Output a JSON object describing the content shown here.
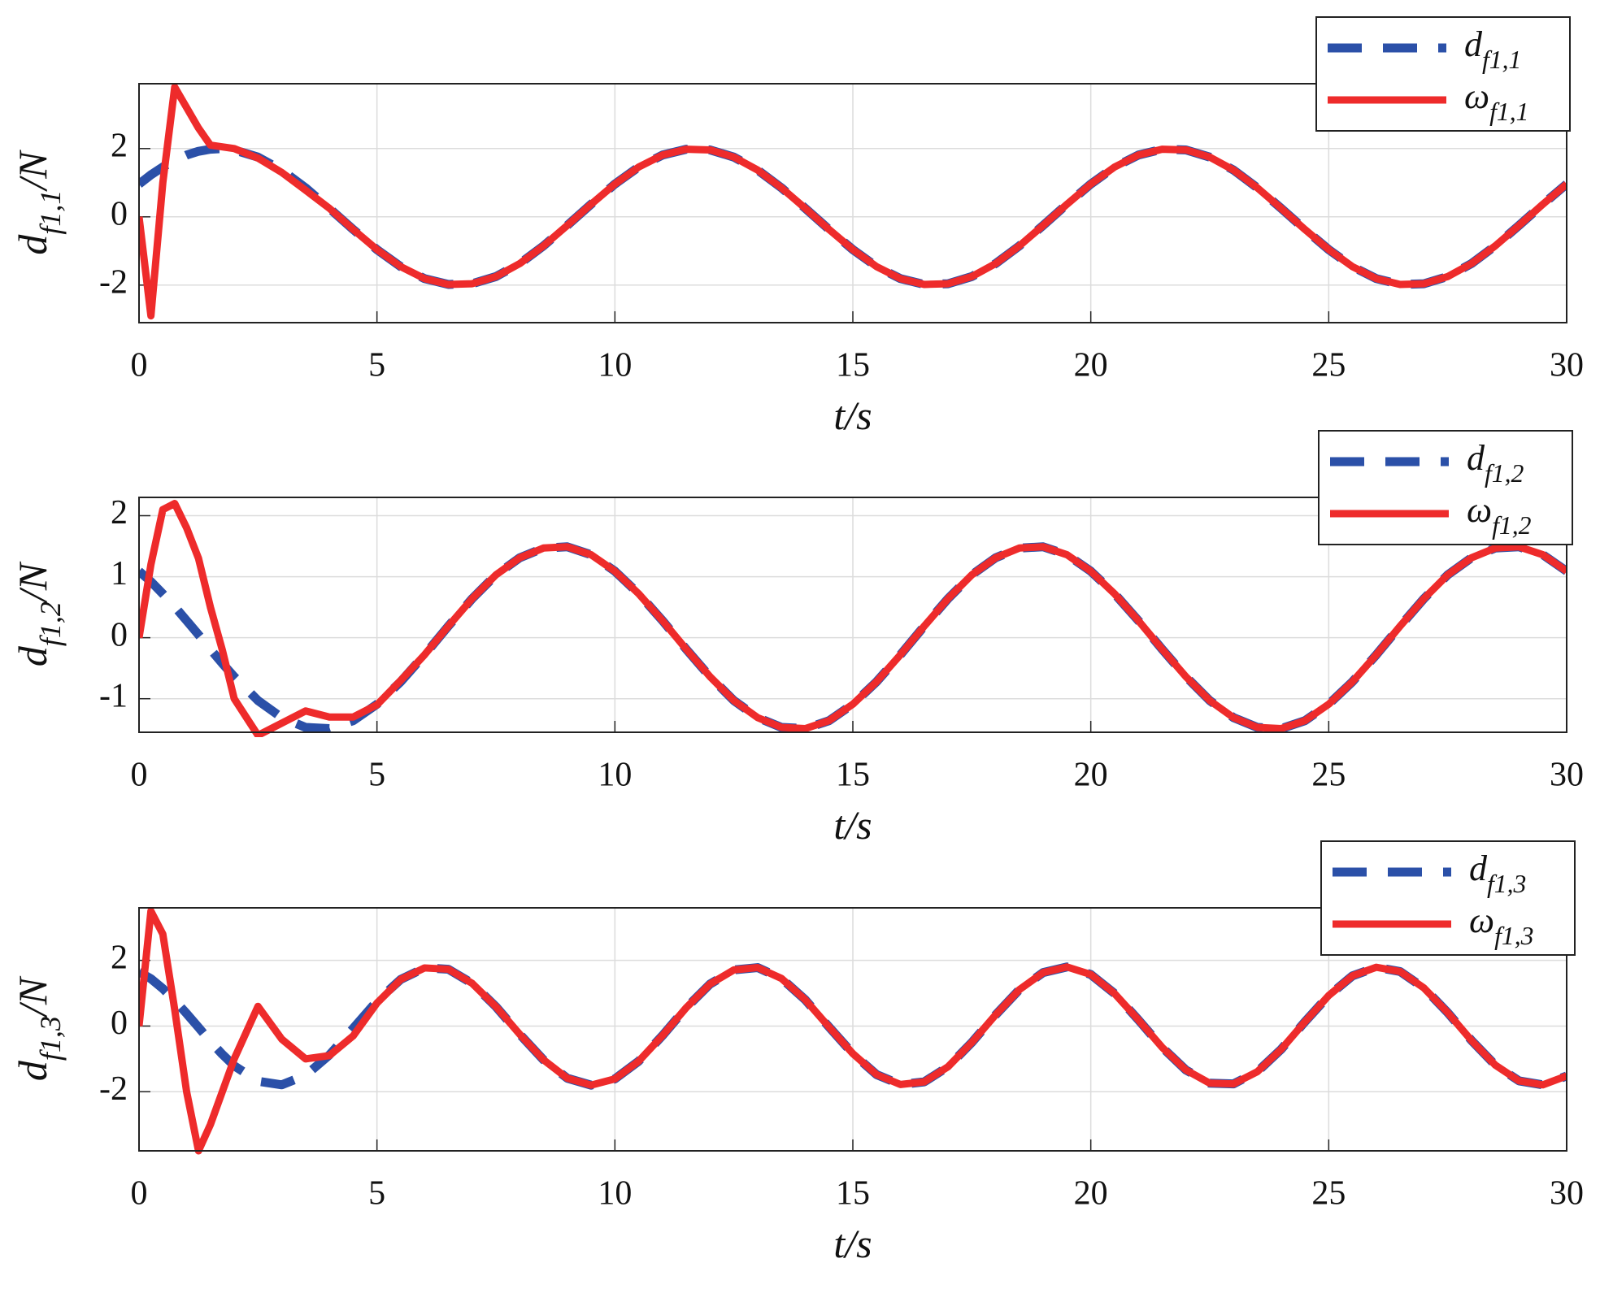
{
  "chart_data": [
    {
      "type": "line",
      "xlabel": "t/s",
      "ylabel": "df1,1/N",
      "x": [
        0,
        0.25,
        0.5,
        0.75,
        1,
        1.25,
        1.5,
        1.75,
        2,
        2.5,
        3,
        3.5,
        4,
        4.5,
        5,
        5.5,
        6,
        6.5,
        7,
        7.5,
        8,
        8.5,
        9,
        9.5,
        10,
        10.5,
        11,
        11.5,
        12,
        12.5,
        13,
        13.5,
        14,
        14.5,
        15,
        15.5,
        16,
        16.5,
        17,
        17.5,
        18,
        18.5,
        19,
        19.5,
        20,
        20.5,
        21,
        21.5,
        22,
        22.5,
        23,
        23.5,
        24,
        24.5,
        25,
        25.5,
        26,
        26.5,
        27,
        27.5,
        28,
        28.5,
        29,
        29.5,
        30
      ],
      "series": [
        {
          "name": "df1,1",
          "color": "#2b50a8",
          "linestyle": "dashed",
          "values": [
            0.96,
            1.23,
            1.46,
            1.65,
            1.81,
            1.92,
            1.98,
            2.0,
            1.96,
            1.75,
            1.37,
            0.85,
            0.25,
            -0.37,
            -0.96,
            -1.46,
            -1.81,
            -1.98,
            -1.96,
            -1.75,
            -1.37,
            -0.85,
            -0.25,
            0.37,
            0.96,
            1.46,
            1.81,
            1.98,
            1.96,
            1.75,
            1.37,
            0.85,
            0.25,
            -0.37,
            -0.96,
            -1.46,
            -1.81,
            -1.98,
            -1.96,
            -1.75,
            -1.37,
            -0.85,
            -0.25,
            0.37,
            0.96,
            1.46,
            1.81,
            1.98,
            1.96,
            1.75,
            1.37,
            0.85,
            0.25,
            -0.37,
            -0.96,
            -1.46,
            -1.81,
            -1.98,
            -1.96,
            -1.75,
            -1.37,
            -0.85,
            -0.25,
            0.37,
            0.96
          ]
        },
        {
          "name": "ωf1,1",
          "color": "#ee2b2b",
          "linestyle": "solid",
          "values": [
            0,
            -2.9,
            1.0,
            3.8,
            3.2,
            2.6,
            2.1,
            2.05,
            2.0,
            1.72,
            1.3,
            0.78,
            0.25,
            -0.37,
            -0.96,
            -1.46,
            -1.81,
            -1.98,
            -1.96,
            -1.75,
            -1.37,
            -0.85,
            -0.25,
            0.37,
            0.96,
            1.46,
            1.81,
            1.98,
            1.96,
            1.75,
            1.37,
            0.85,
            0.25,
            -0.37,
            -0.96,
            -1.46,
            -1.81,
            -1.98,
            -1.96,
            -1.75,
            -1.37,
            -0.85,
            -0.25,
            0.37,
            0.96,
            1.46,
            1.81,
            1.98,
            1.96,
            1.75,
            1.37,
            0.85,
            0.25,
            -0.37,
            -0.96,
            -1.46,
            -1.81,
            -1.98,
            -1.96,
            -1.75,
            -1.37,
            -0.85,
            -0.25,
            0.37,
            0.96
          ]
        }
      ],
      "xlim": [
        0,
        30
      ],
      "xticks": [
        0,
        5,
        10,
        15,
        20,
        25,
        30
      ],
      "ylim": [
        -3.1,
        3.9
      ],
      "yticks": [
        -2,
        0,
        2
      ],
      "grid": true,
      "legend_position": "upper right"
    },
    {
      "type": "line",
      "xlabel": "t/s",
      "ylabel": "df1,2/N",
      "x": [
        0,
        0.25,
        0.5,
        0.75,
        1,
        1.25,
        1.5,
        1.75,
        2,
        2.5,
        3,
        3.5,
        4,
        4.5,
        5,
        5.5,
        6,
        6.5,
        7,
        7.5,
        8,
        8.5,
        9,
        9.5,
        10,
        10.5,
        11,
        11.5,
        12,
        12.5,
        13,
        13.5,
        14,
        14.5,
        15,
        15.5,
        16,
        16.5,
        17,
        17.5,
        18,
        18.5,
        19,
        19.5,
        20,
        20.5,
        21,
        21.5,
        22,
        22.5,
        23,
        23.5,
        24,
        24.5,
        25,
        25.5,
        26,
        26.5,
        27,
        27.5,
        28,
        28.5,
        29,
        29.5,
        30
      ],
      "series": [
        {
          "name": "df1,2",
          "color": "#2b50a8",
          "linestyle": "dashed",
          "values": [
            1.09,
            0.92,
            0.72,
            0.51,
            0.28,
            0.05,
            -0.19,
            -0.42,
            -0.64,
            -1.03,
            -1.31,
            -1.47,
            -1.49,
            -1.36,
            -1.09,
            -0.72,
            -0.28,
            0.19,
            0.64,
            1.03,
            1.31,
            1.47,
            1.49,
            1.36,
            1.09,
            0.72,
            0.28,
            -0.19,
            -0.64,
            -1.03,
            -1.31,
            -1.47,
            -1.49,
            -1.36,
            -1.09,
            -0.72,
            -0.28,
            0.19,
            0.64,
            1.03,
            1.31,
            1.47,
            1.49,
            1.36,
            1.09,
            0.72,
            0.28,
            -0.19,
            -0.64,
            -1.03,
            -1.31,
            -1.47,
            -1.49,
            -1.36,
            -1.09,
            -0.72,
            -0.28,
            0.19,
            0.64,
            1.03,
            1.31,
            1.47,
            1.49,
            1.36,
            1.09
          ]
        },
        {
          "name": "ωf1,2",
          "color": "#ee2b2b",
          "linestyle": "solid",
          "values": [
            0,
            1.2,
            2.1,
            2.2,
            1.8,
            1.3,
            0.5,
            -0.2,
            -1.0,
            -1.6,
            -1.4,
            -1.2,
            -1.3,
            -1.3,
            -1.1,
            -0.7,
            -0.28,
            0.19,
            0.64,
            1.03,
            1.31,
            1.47,
            1.49,
            1.36,
            1.09,
            0.72,
            0.28,
            -0.19,
            -0.64,
            -1.03,
            -1.31,
            -1.47,
            -1.49,
            -1.36,
            -1.09,
            -0.72,
            -0.28,
            0.19,
            0.64,
            1.03,
            1.31,
            1.47,
            1.49,
            1.36,
            1.09,
            0.72,
            0.28,
            -0.19,
            -0.64,
            -1.03,
            -1.31,
            -1.47,
            -1.49,
            -1.36,
            -1.09,
            -0.72,
            -0.28,
            0.19,
            0.64,
            1.03,
            1.31,
            1.47,
            1.49,
            1.36,
            1.09
          ]
        }
      ],
      "xlim": [
        0,
        30
      ],
      "xticks": [
        0,
        5,
        10,
        15,
        20,
        25,
        30
      ],
      "ylim": [
        -1.55,
        2.3
      ],
      "yticks": [
        -1,
        0,
        1,
        2
      ],
      "grid": true,
      "legend_position": "upper right"
    },
    {
      "type": "line",
      "xlabel": "t/s",
      "ylabel": "df1,3/N",
      "x": [
        0,
        0.25,
        0.5,
        0.75,
        1,
        1.25,
        1.5,
        1.75,
        2,
        2.5,
        3,
        3.5,
        4,
        4.5,
        5,
        5.5,
        6,
        6.5,
        7,
        7.5,
        8,
        8.5,
        9,
        9.5,
        10,
        10.5,
        11,
        11.5,
        12,
        12.5,
        13,
        13.5,
        14,
        14.5,
        15,
        15.5,
        16,
        16.5,
        17,
        17.5,
        18,
        18.5,
        19,
        19.5,
        20,
        20.5,
        21,
        21.5,
        22,
        22.5,
        23,
        23.5,
        24,
        24.5,
        25,
        25.5,
        26,
        26.5,
        27,
        27.5,
        28,
        28.5,
        29,
        29.5,
        30
      ],
      "series": [
        {
          "name": "df1,3",
          "color": "#2b50a8",
          "linestyle": "dashed",
          "values": [
            1.65,
            1.44,
            1.14,
            0.78,
            0.38,
            -0.04,
            -0.47,
            -0.86,
            -1.21,
            -1.68,
            -1.79,
            -1.5,
            -0.88,
            -0.07,
            0.76,
            1.42,
            1.77,
            1.73,
            1.3,
            0.59,
            -0.25,
            -1.03,
            -1.59,
            -1.8,
            -1.61,
            -1.07,
            -0.29,
            0.56,
            1.28,
            1.71,
            1.78,
            1.45,
            0.8,
            -0.03,
            -0.84,
            -1.48,
            -1.78,
            -1.7,
            -1.24,
            -0.5,
            0.34,
            1.11,
            1.63,
            1.8,
            1.57,
            0.99,
            0.19,
            -0.65,
            -1.34,
            -1.74,
            -1.76,
            -1.39,
            -0.71,
            0.13,
            0.93,
            1.53,
            1.79,
            1.66,
            1.16,
            0.41,
            -0.44,
            -1.19,
            -1.67,
            -1.79,
            -1.52
          ]
        },
        {
          "name": "ωf1,3",
          "color": "#ee2b2b",
          "linestyle": "solid",
          "values": [
            0,
            3.5,
            2.8,
            0.5,
            -2.0,
            -3.8,
            -3.0,
            -2.0,
            -1.0,
            0.6,
            -0.4,
            -1.0,
            -0.9,
            -0.3,
            0.7,
            1.42,
            1.77,
            1.73,
            1.3,
            0.59,
            -0.25,
            -1.03,
            -1.59,
            -1.8,
            -1.61,
            -1.07,
            -0.29,
            0.56,
            1.28,
            1.71,
            1.78,
            1.45,
            0.8,
            -0.03,
            -0.84,
            -1.48,
            -1.78,
            -1.7,
            -1.24,
            -0.5,
            0.34,
            1.11,
            1.63,
            1.8,
            1.57,
            0.99,
            0.19,
            -0.65,
            -1.34,
            -1.74,
            -1.76,
            -1.39,
            -0.71,
            0.13,
            0.93,
            1.53,
            1.79,
            1.66,
            1.16,
            0.41,
            -0.44,
            -1.19,
            -1.67,
            -1.79,
            -1.52
          ]
        }
      ],
      "xlim": [
        0,
        30
      ],
      "xticks": [
        0,
        5,
        10,
        15,
        20,
        25,
        30
      ],
      "ylim": [
        -3.8,
        3.6
      ],
      "yticks": [
        -2,
        0,
        2
      ],
      "grid": true,
      "legend_position": "upper right"
    }
  ]
}
